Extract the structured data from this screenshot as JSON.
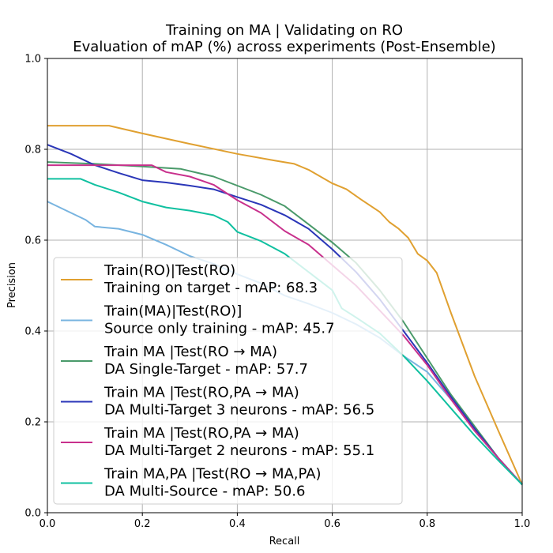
{
  "chart_data": {
    "type": "line",
    "title": "Training on MA | Validating on RO",
    "subtitle": "Evaluation of mAP (%) across experiments (Post-Ensemble)",
    "xlabel": "Recall",
    "ylabel": "Precision",
    "xlim": [
      0.0,
      1.0
    ],
    "ylim": [
      0.0,
      1.0
    ],
    "xticks": [
      "0.0",
      "0.2",
      "0.4",
      "0.6",
      "0.8",
      "1.0"
    ],
    "yticks": [
      "0.0",
      "0.2",
      "0.4",
      "0.6",
      "0.8",
      "1.0"
    ],
    "grid": true,
    "legend_position": "lower-left",
    "series": [
      {
        "name": "Train(RO)|Test(RO)",
        "description": "Training on target - mAP: 68.3",
        "color": "#e0a030",
        "points": [
          [
            0.0,
            0.852
          ],
          [
            0.13,
            0.852
          ],
          [
            0.2,
            0.835
          ],
          [
            0.3,
            0.812
          ],
          [
            0.4,
            0.79
          ],
          [
            0.48,
            0.775
          ],
          [
            0.52,
            0.768
          ],
          [
            0.55,
            0.755
          ],
          [
            0.6,
            0.725
          ],
          [
            0.63,
            0.712
          ],
          [
            0.66,
            0.69
          ],
          [
            0.7,
            0.662
          ],
          [
            0.72,
            0.64
          ],
          [
            0.74,
            0.625
          ],
          [
            0.76,
            0.605
          ],
          [
            0.78,
            0.57
          ],
          [
            0.8,
            0.555
          ],
          [
            0.82,
            0.528
          ],
          [
            0.85,
            0.44
          ],
          [
            0.9,
            0.3
          ],
          [
            0.95,
            0.18
          ],
          [
            1.0,
            0.062
          ]
        ]
      },
      {
        "name": "Train(MA)|Test(RO)]",
        "description": "Source only training - mAP: 45.7",
        "color": "#78b4e0",
        "points": [
          [
            0.0,
            0.685
          ],
          [
            0.05,
            0.66
          ],
          [
            0.08,
            0.645
          ],
          [
            0.1,
            0.63
          ],
          [
            0.15,
            0.625
          ],
          [
            0.2,
            0.612
          ],
          [
            0.25,
            0.59
          ],
          [
            0.3,
            0.565
          ],
          [
            0.35,
            0.548
          ],
          [
            0.4,
            0.525
          ],
          [
            0.45,
            0.505
          ],
          [
            0.5,
            0.478
          ],
          [
            0.55,
            0.46
          ],
          [
            0.6,
            0.44
          ],
          [
            0.65,
            0.415
          ],
          [
            0.7,
            0.385
          ],
          [
            0.75,
            0.345
          ],
          [
            0.8,
            0.31
          ],
          [
            0.85,
            0.25
          ],
          [
            0.9,
            0.18
          ],
          [
            0.95,
            0.12
          ],
          [
            1.0,
            0.062
          ]
        ]
      },
      {
        "name": "Train MA |Test(RO → MA)",
        "description": "DA Single-Target - mAP: 57.7",
        "color": "#4a9a6a",
        "points": [
          [
            0.0,
            0.772
          ],
          [
            0.1,
            0.768
          ],
          [
            0.2,
            0.762
          ],
          [
            0.28,
            0.757
          ],
          [
            0.35,
            0.74
          ],
          [
            0.4,
            0.72
          ],
          [
            0.45,
            0.7
          ],
          [
            0.5,
            0.675
          ],
          [
            0.55,
            0.635
          ],
          [
            0.6,
            0.595
          ],
          [
            0.65,
            0.55
          ],
          [
            0.7,
            0.49
          ],
          [
            0.75,
            0.42
          ],
          [
            0.8,
            0.34
          ],
          [
            0.85,
            0.26
          ],
          [
            0.9,
            0.19
          ],
          [
            0.95,
            0.12
          ],
          [
            1.0,
            0.062
          ]
        ]
      },
      {
        "name": "Train MA |Test(RO,PA → MA)",
        "description": "DA Multi-Target 3 neurons - mAP: 56.5",
        "color": "#2a36b8",
        "points": [
          [
            0.0,
            0.81
          ],
          [
            0.05,
            0.79
          ],
          [
            0.1,
            0.765
          ],
          [
            0.15,
            0.748
          ],
          [
            0.2,
            0.732
          ],
          [
            0.25,
            0.727
          ],
          [
            0.3,
            0.72
          ],
          [
            0.35,
            0.712
          ],
          [
            0.4,
            0.695
          ],
          [
            0.45,
            0.678
          ],
          [
            0.5,
            0.655
          ],
          [
            0.55,
            0.625
          ],
          [
            0.6,
            0.58
          ],
          [
            0.65,
            0.53
          ],
          [
            0.7,
            0.47
          ],
          [
            0.75,
            0.4
          ],
          [
            0.8,
            0.33
          ],
          [
            0.85,
            0.255
          ],
          [
            0.9,
            0.185
          ],
          [
            0.95,
            0.12
          ],
          [
            1.0,
            0.062
          ]
        ]
      },
      {
        "name": "Train MA |Test(RO,PA → MA)",
        "description": "DA Multi-Target 2 neurons - mAP: 55.1",
        "color": "#c8308c",
        "points": [
          [
            0.0,
            0.765
          ],
          [
            0.1,
            0.765
          ],
          [
            0.22,
            0.765
          ],
          [
            0.25,
            0.75
          ],
          [
            0.3,
            0.74
          ],
          [
            0.35,
            0.722
          ],
          [
            0.4,
            0.688
          ],
          [
            0.45,
            0.66
          ],
          [
            0.5,
            0.62
          ],
          [
            0.55,
            0.59
          ],
          [
            0.6,
            0.545
          ],
          [
            0.65,
            0.5
          ],
          [
            0.7,
            0.445
          ],
          [
            0.75,
            0.39
          ],
          [
            0.8,
            0.325
          ],
          [
            0.85,
            0.25
          ],
          [
            0.9,
            0.18
          ],
          [
            0.95,
            0.12
          ],
          [
            1.0,
            0.062
          ]
        ]
      },
      {
        "name": "Train MA,PA |Test(RO → MA,PA)",
        "description": "DA Multi-Source - mAP: 50.6",
        "color": "#10c0a0",
        "points": [
          [
            0.0,
            0.735
          ],
          [
            0.07,
            0.735
          ],
          [
            0.1,
            0.722
          ],
          [
            0.15,
            0.705
          ],
          [
            0.2,
            0.685
          ],
          [
            0.25,
            0.672
          ],
          [
            0.3,
            0.665
          ],
          [
            0.35,
            0.655
          ],
          [
            0.38,
            0.64
          ],
          [
            0.4,
            0.618
          ],
          [
            0.45,
            0.598
          ],
          [
            0.5,
            0.57
          ],
          [
            0.55,
            0.53
          ],
          [
            0.6,
            0.49
          ],
          [
            0.62,
            0.45
          ],
          [
            0.65,
            0.43
          ],
          [
            0.7,
            0.395
          ],
          [
            0.75,
            0.345
          ],
          [
            0.8,
            0.29
          ],
          [
            0.85,
            0.23
          ],
          [
            0.9,
            0.17
          ],
          [
            0.95,
            0.115
          ],
          [
            1.0,
            0.062
          ]
        ]
      }
    ]
  }
}
